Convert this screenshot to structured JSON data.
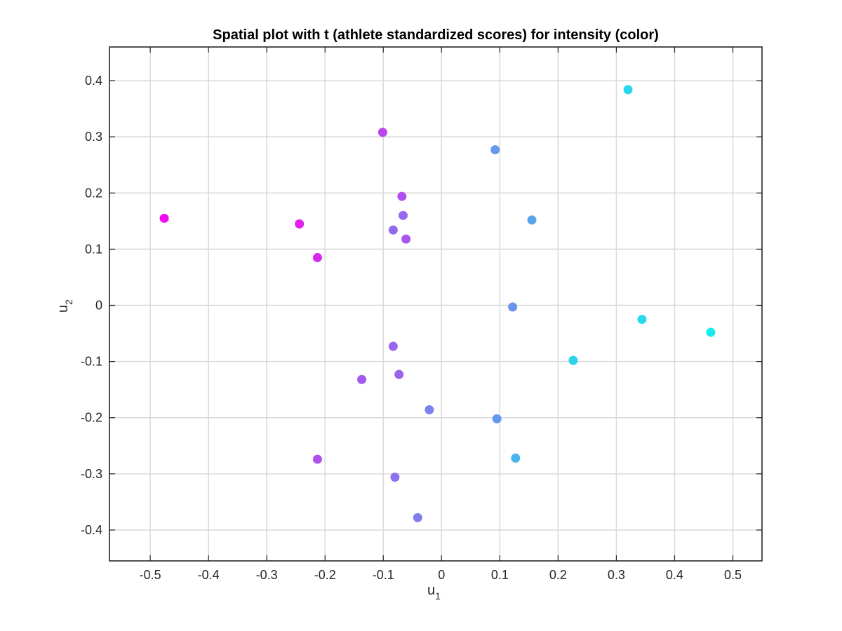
{
  "chart_data": {
    "type": "scatter",
    "title": "Spatial plot with t (athlete standardized scores) for intensity (color)",
    "xlabel": {
      "base": "u",
      "sub": "1"
    },
    "ylabel": {
      "base": "u",
      "sub": "2"
    },
    "xlim": [
      -0.57,
      0.55
    ],
    "ylim": [
      -0.455,
      0.46
    ],
    "xticks": [
      -0.5,
      -0.4,
      -0.3,
      -0.2,
      -0.1,
      0,
      0.1,
      0.2,
      0.3,
      0.4,
      0.5
    ],
    "xtick_labels": [
      "-0.5",
      "-0.4",
      "-0.3",
      "-0.2",
      "-0.1",
      "0",
      "0.1",
      "0.2",
      "0.3",
      "0.4",
      "0.5"
    ],
    "yticks": [
      -0.4,
      -0.3,
      -0.2,
      -0.1,
      0,
      0.1,
      0.2,
      0.3,
      0.4
    ],
    "ytick_labels": [
      "-0.4",
      "-0.3",
      "-0.2",
      "-0.1",
      "0",
      "0.1",
      "0.2",
      "0.3",
      "0.4"
    ],
    "grid": true,
    "points": [
      {
        "x": -0.476,
        "y": 0.155,
        "color": "#f20bf2"
      },
      {
        "x": -0.244,
        "y": 0.145,
        "color": "#e21ef0"
      },
      {
        "x": -0.213,
        "y": 0.085,
        "color": "#d728ef"
      },
      {
        "x": -0.101,
        "y": 0.308,
        "color": "#ba45ee"
      },
      {
        "x": -0.068,
        "y": 0.194,
        "color": "#b050ee"
      },
      {
        "x": -0.066,
        "y": 0.16,
        "color": "#9768ee"
      },
      {
        "x": -0.083,
        "y": 0.134,
        "color": "#9569ee"
      },
      {
        "x": -0.061,
        "y": 0.118,
        "color": "#ad53ee"
      },
      {
        "x": 0.092,
        "y": 0.277,
        "color": "#6598ee"
      },
      {
        "x": 0.155,
        "y": 0.152,
        "color": "#5aa3ee"
      },
      {
        "x": 0.32,
        "y": 0.384,
        "color": "#28d8ee"
      },
      {
        "x": 0.122,
        "y": -0.003,
        "color": "#6a93ee"
      },
      {
        "x": 0.344,
        "y": -0.025,
        "color": "#28dbee"
      },
      {
        "x": 0.462,
        "y": -0.048,
        "color": "#18eaee"
      },
      {
        "x": 0.226,
        "y": -0.098,
        "color": "#30d2ee"
      },
      {
        "x": -0.083,
        "y": -0.073,
        "color": "#9966ee"
      },
      {
        "x": -0.073,
        "y": -0.123,
        "color": "#9c63ee"
      },
      {
        "x": -0.137,
        "y": -0.132,
        "color": "#a159ee"
      },
      {
        "x": -0.021,
        "y": -0.186,
        "color": "#7a83ee"
      },
      {
        "x": 0.095,
        "y": -0.202,
        "color": "#6597ee"
      },
      {
        "x": 0.127,
        "y": -0.272,
        "color": "#48b5ee"
      },
      {
        "x": -0.213,
        "y": -0.274,
        "color": "#ae52ee"
      },
      {
        "x": -0.08,
        "y": -0.306,
        "color": "#8d72ee"
      },
      {
        "x": -0.041,
        "y": -0.378,
        "color": "#7f7eee"
      }
    ]
  }
}
